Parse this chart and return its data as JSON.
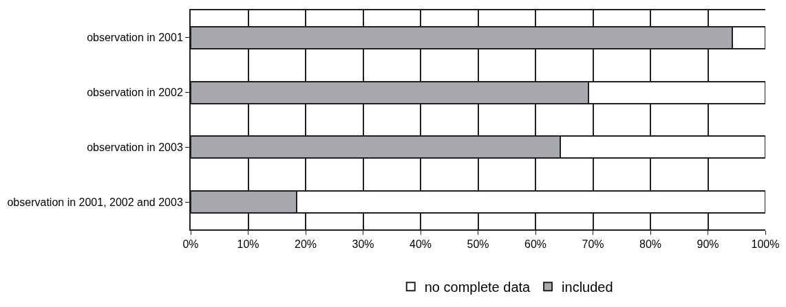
{
  "chart_data": {
    "type": "bar",
    "orientation": "horizontal",
    "stacked": true,
    "categories": [
      "observation in 2001",
      "observation in 2002",
      "observation in 2003",
      "observation in 2001, 2002 and 2003"
    ],
    "series": [
      {
        "name": "included",
        "color": "#a7a9ac",
        "values": [
          94.3,
          69.2,
          64.3,
          18.4
        ]
      },
      {
        "name": "no complete data",
        "color": "#ffffff",
        "values": [
          5.7,
          30.8,
          35.7,
          81.6
        ]
      }
    ],
    "xlim": [
      0,
      100
    ],
    "xticks": [
      {
        "value": 0,
        "label": "0%"
      },
      {
        "value": 10,
        "label": "10%"
      },
      {
        "value": 20,
        "label": "20%"
      },
      {
        "value": 30,
        "label": "30%"
      },
      {
        "value": 40,
        "label": "40%"
      },
      {
        "value": 50,
        "label": "50%"
      },
      {
        "value": 60,
        "label": "60%"
      },
      {
        "value": 70,
        "label": "70%"
      },
      {
        "value": 80,
        "label": "80%"
      },
      {
        "value": 90,
        "label": "90%"
      },
      {
        "value": 100,
        "label": "100%"
      }
    ],
    "grid": "x",
    "legend": "bottom"
  }
}
